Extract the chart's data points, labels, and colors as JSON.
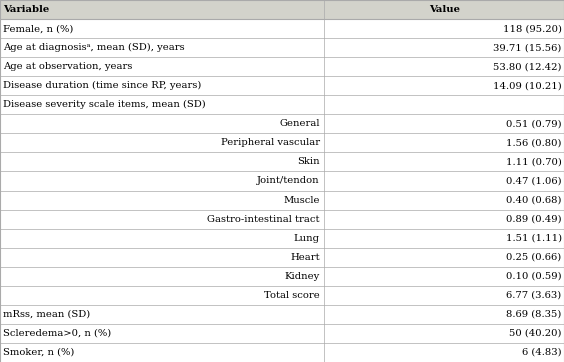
{
  "col_headers": [
    "Variable",
    "Value"
  ],
  "rows": [
    {
      "label": "Female, n (%)",
      "value": "118 (95.20)",
      "indent": false
    },
    {
      "label": "Age at diagnosisᵃ, mean (SD), years",
      "value": "39.71 (15.56)",
      "indent": false
    },
    {
      "label": "Age at observation, years",
      "value": "53.80 (12.42)",
      "indent": false
    },
    {
      "label": "Disease duration (time since RP, years)",
      "value": "14.09 (10.21)",
      "indent": false
    },
    {
      "label": "Disease severity scale items, mean (SD)",
      "value": "",
      "indent": false
    },
    {
      "label": "General",
      "value": "0.51 (0.79)",
      "indent": true
    },
    {
      "label": "Peripheral vascular",
      "value": "1.56 (0.80)",
      "indent": true
    },
    {
      "label": "Skin",
      "value": "1.11 (0.70)",
      "indent": true
    },
    {
      "label": "Joint/tendon",
      "value": "0.47 (1.06)",
      "indent": true
    },
    {
      "label": "Muscle",
      "value": "0.40 (0.68)",
      "indent": true
    },
    {
      "label": "Gastro-intestinal tract",
      "value": "0.89 (0.49)",
      "indent": true
    },
    {
      "label": "Lung",
      "value": "1.51 (1.11)",
      "indent": true
    },
    {
      "label": "Heart",
      "value": "0.25 (0.66)",
      "indent": true
    },
    {
      "label": "Kidney",
      "value": "0.10 (0.59)",
      "indent": true
    },
    {
      "label": "Total score",
      "value": "6.77 (3.63)",
      "indent": true
    },
    {
      "label": "mRss, mean (SD)",
      "value": "8.69 (8.35)",
      "indent": false
    },
    {
      "label": "Scleredema>0, n (%)",
      "value": "50 (40.20)",
      "indent": false
    },
    {
      "label": "Smoker, n (%)",
      "value": "6 (4.83)",
      "indent": false
    }
  ],
  "bg_color": "#ffffff",
  "header_bg": "#d3d3cb",
  "line_color": "#aaaaaa",
  "text_color": "#000000",
  "font_size": 7.2,
  "col_split": 0.575
}
